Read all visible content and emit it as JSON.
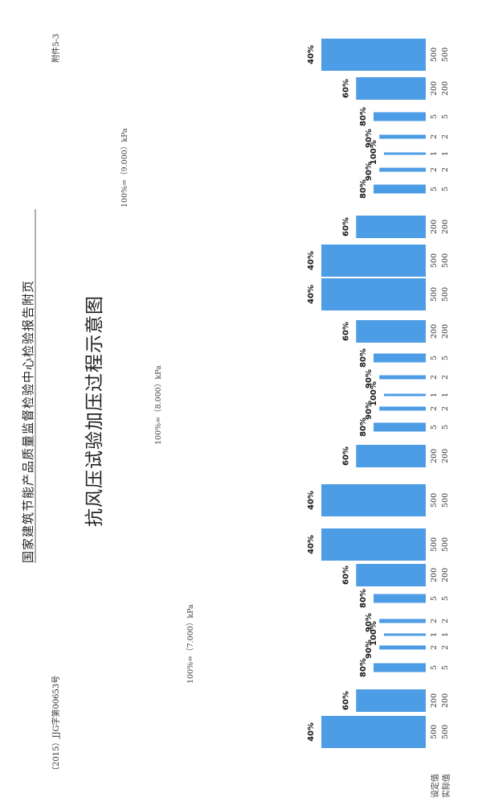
{
  "header": {
    "org": "国家建筑节能产品质量监督检验中心检验报告附页",
    "report_no": "（2015）JJG字第00653号",
    "attachment": "附件5-3"
  },
  "chart_data": {
    "type": "bar",
    "title": "抗风压试验加压过程示意图",
    "row_labels": [
      "设定值",
      "实际值"
    ],
    "groups": [
      "100%=（7.000）kPa",
      "100%=（8.000）kPa",
      "100%=（9.000）kPa"
    ],
    "categories": [
      "40%",
      "60%",
      "80%",
      "90%",
      "100%",
      "90%",
      "80%",
      "60%",
      "40%",
      "40%",
      "60%",
      "80%",
      "90%",
      "100%",
      "90%",
      "80%",
      "60%",
      "40%",
      "40%",
      "60%",
      "80%",
      "90%",
      "100%",
      "90%",
      "80%",
      "60%",
      "40%"
    ],
    "set_values": [
      500,
      200,
      5,
      2,
      1,
      2,
      5,
      200,
      500,
      500,
      200,
      5,
      2,
      1,
      2,
      5,
      200,
      500,
      500,
      200,
      5,
      2,
      1,
      2,
      5,
      200,
      500
    ],
    "actual_values": [
      500,
      200,
      5,
      2,
      1,
      2,
      5,
      200,
      500,
      500,
      200,
      5,
      2,
      1,
      2,
      5,
      200,
      500,
      500,
      200,
      5,
      2,
      1,
      2,
      5,
      200,
      500
    ],
    "percent_values": [
      40,
      60,
      80,
      90,
      100,
      90,
      80,
      60,
      40,
      40,
      60,
      80,
      90,
      100,
      90,
      80,
      60,
      40,
      40,
      60,
      80,
      90,
      100,
      90,
      80,
      60,
      40
    ],
    "bar_color": "#4d9ce6"
  }
}
